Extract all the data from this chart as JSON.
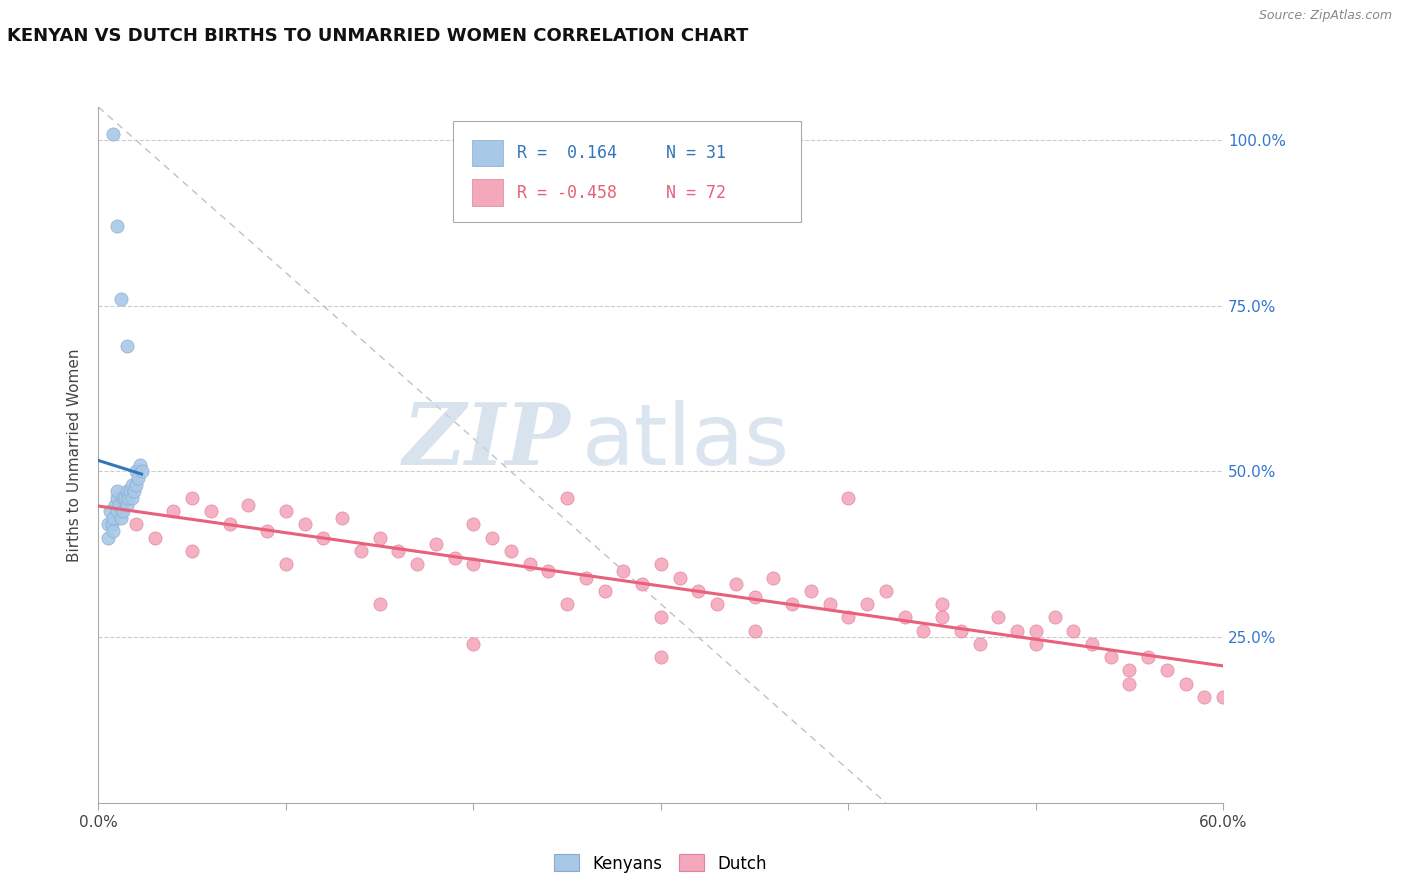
{
  "title": "KENYAN VS DUTCH BIRTHS TO UNMARRIED WOMEN CORRELATION CHART",
  "source": "Source: ZipAtlas.com",
  "ylabel": "Births to Unmarried Women",
  "kenyan_color": "#a8c8e8",
  "kenyan_edge_color": "#88aacc",
  "dutch_color": "#f4a8bc",
  "dutch_edge_color": "#e080a0",
  "kenyan_line_color": "#3377bb",
  "dutch_line_color": "#e8607a",
  "ref_line_color": "#bbbbbb",
  "legend_R_kenyan": "R =  0.164",
  "legend_N_kenyan": "N = 31",
  "legend_R_dutch": "R = -0.458",
  "legend_N_dutch": "N = 72",
  "watermark_zip": "ZIP",
  "watermark_atlas": "atlas",
  "xmin": 0.0,
  "xmax": 0.6,
  "ymin": 0.0,
  "ymax": 1.05,
  "kenyan_x": [
    0.005,
    0.005,
    0.006,
    0.007,
    0.008,
    0.008,
    0.009,
    0.01,
    0.01,
    0.01,
    0.011,
    0.012,
    0.013,
    0.013,
    0.014,
    0.015,
    0.015,
    0.016,
    0.017,
    0.018,
    0.018,
    0.019,
    0.02,
    0.02,
    0.021,
    0.022,
    0.023,
    0.015,
    0.012,
    0.01,
    0.008
  ],
  "kenyan_y": [
    0.42,
    0.4,
    0.44,
    0.42,
    0.43,
    0.41,
    0.45,
    0.44,
    0.46,
    0.47,
    0.45,
    0.43,
    0.46,
    0.44,
    0.46,
    0.45,
    0.47,
    0.46,
    0.47,
    0.48,
    0.46,
    0.47,
    0.48,
    0.5,
    0.49,
    0.51,
    0.5,
    0.69,
    0.76,
    0.87,
    1.01
  ],
  "dutch_x": [
    0.02,
    0.03,
    0.04,
    0.05,
    0.06,
    0.07,
    0.08,
    0.09,
    0.1,
    0.11,
    0.12,
    0.13,
    0.14,
    0.15,
    0.16,
    0.17,
    0.18,
    0.19,
    0.2,
    0.21,
    0.22,
    0.23,
    0.24,
    0.25,
    0.26,
    0.27,
    0.28,
    0.29,
    0.3,
    0.31,
    0.32,
    0.33,
    0.34,
    0.35,
    0.36,
    0.37,
    0.38,
    0.39,
    0.4,
    0.41,
    0.42,
    0.43,
    0.44,
    0.45,
    0.46,
    0.47,
    0.48,
    0.49,
    0.5,
    0.51,
    0.52,
    0.53,
    0.54,
    0.55,
    0.56,
    0.57,
    0.58,
    0.59,
    0.6,
    0.05,
    0.1,
    0.15,
    0.2,
    0.25,
    0.3,
    0.35,
    0.4,
    0.45,
    0.5,
    0.55,
    0.2,
    0.3
  ],
  "dutch_y": [
    0.42,
    0.4,
    0.44,
    0.46,
    0.44,
    0.42,
    0.45,
    0.41,
    0.44,
    0.42,
    0.4,
    0.43,
    0.38,
    0.4,
    0.38,
    0.36,
    0.39,
    0.37,
    0.42,
    0.4,
    0.38,
    0.36,
    0.35,
    0.46,
    0.34,
    0.32,
    0.35,
    0.33,
    0.36,
    0.34,
    0.32,
    0.3,
    0.33,
    0.31,
    0.34,
    0.3,
    0.32,
    0.3,
    0.28,
    0.3,
    0.32,
    0.28,
    0.26,
    0.28,
    0.26,
    0.24,
    0.28,
    0.26,
    0.24,
    0.28,
    0.26,
    0.24,
    0.22,
    0.2,
    0.22,
    0.2,
    0.18,
    0.16,
    0.16,
    0.38,
    0.36,
    0.3,
    0.36,
    0.3,
    0.28,
    0.26,
    0.46,
    0.3,
    0.26,
    0.18,
    0.24,
    0.22
  ]
}
